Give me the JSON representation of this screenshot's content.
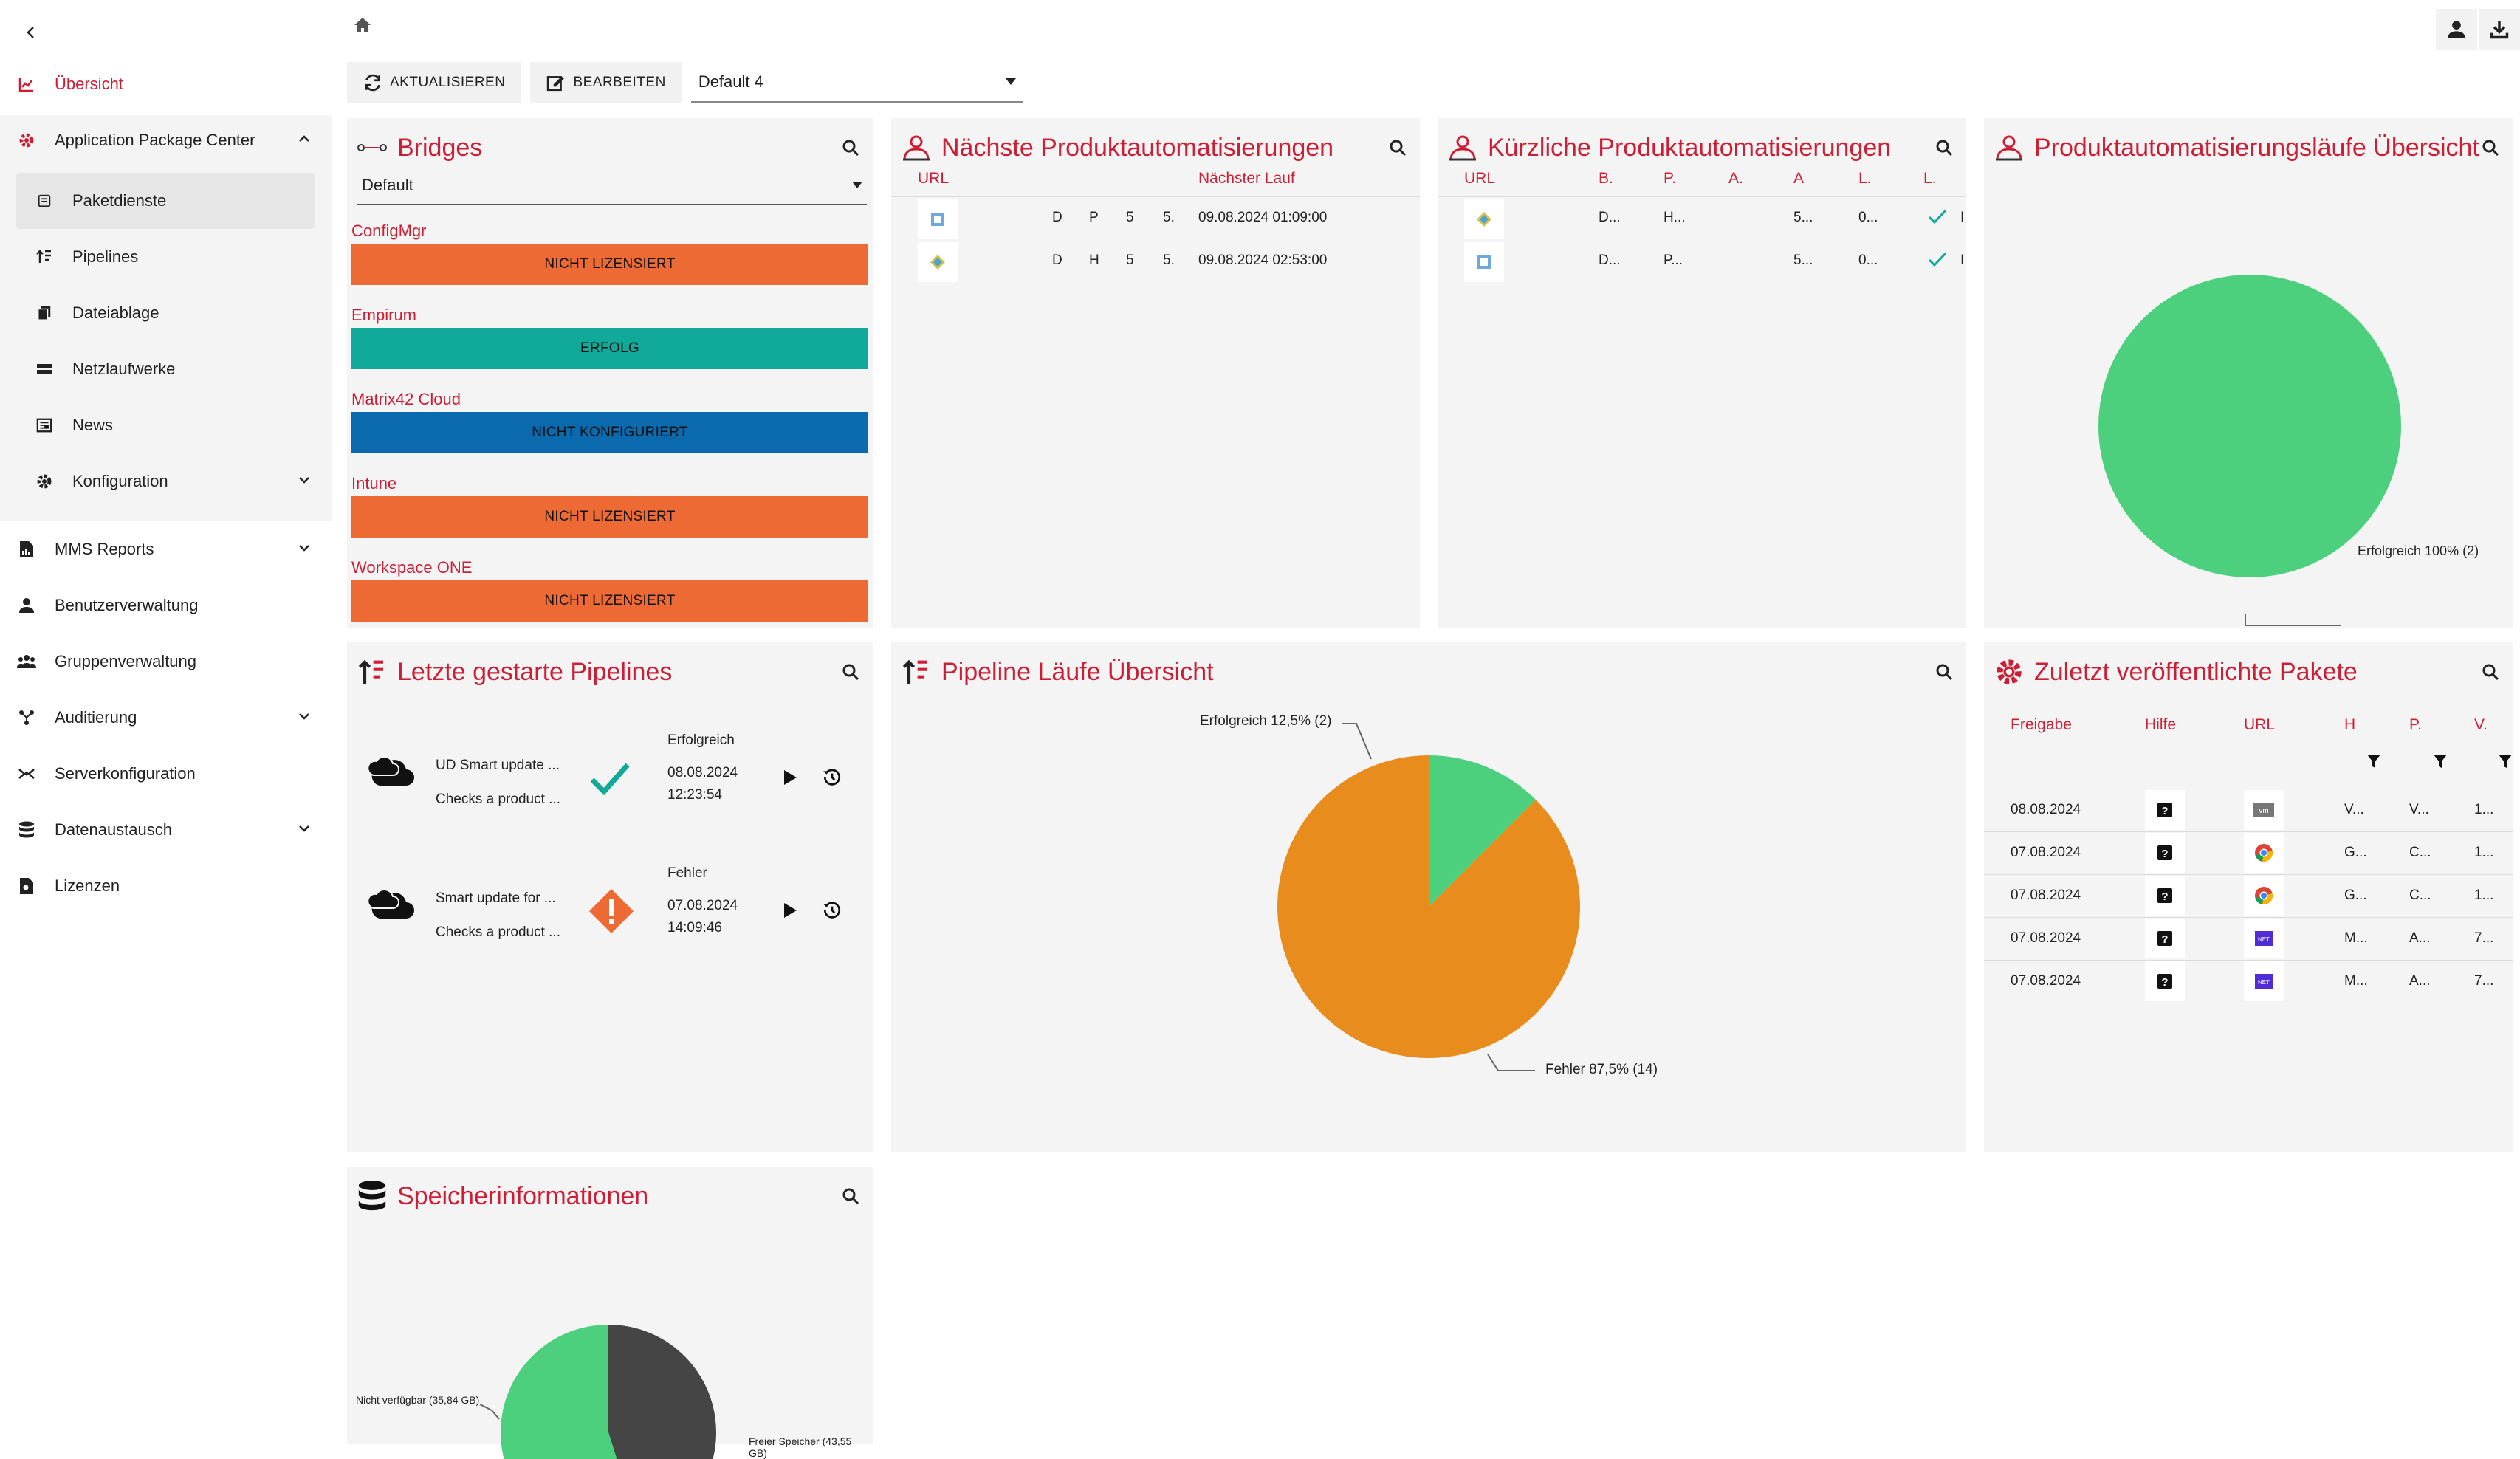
{
  "nav": {
    "items": [
      {
        "label": "Übersicht",
        "icon": "chart-icon",
        "active": true
      },
      {
        "label": "Application Package Center",
        "icon": "gear-icon",
        "expanded": true
      },
      {
        "label": "Paketdienste",
        "icon": "package-icon",
        "selected": true
      },
      {
        "label": "Pipelines",
        "icon": "pipeline-icon"
      },
      {
        "label": "Dateiablage",
        "icon": "files-icon"
      },
      {
        "label": "Netzlaufwerke",
        "icon": "drive-icon"
      },
      {
        "label": "News",
        "icon": "news-icon"
      },
      {
        "label": "Konfiguration",
        "icon": "gear-icon",
        "expandable": true
      },
      {
        "label": "MMS Reports",
        "icon": "report-icon",
        "expandable": true
      },
      {
        "label": "Benutzerverwaltung",
        "icon": "user-icon"
      },
      {
        "label": "Gruppenverwaltung",
        "icon": "group-icon"
      },
      {
        "label": "Auditierung",
        "icon": "audit-icon",
        "expandable": true
      },
      {
        "label": "Serverkonfiguration",
        "icon": "server-icon"
      },
      {
        "label": "Datenaustausch",
        "icon": "database-icon",
        "expandable": true
      },
      {
        "label": "Lizenzen",
        "icon": "license-icon"
      }
    ]
  },
  "toolbar": {
    "refresh_label": "AKTUALISIEREN",
    "edit_label": "BEARBEITEN",
    "dashboard_select": "Default 4"
  },
  "bridges": {
    "title": "Bridges",
    "select": "Default",
    "items": [
      {
        "name": "ConfigMgr",
        "status": "NICHT LIZENSIERT",
        "color": "#ee6a35"
      },
      {
        "name": "Empirum",
        "status": "ERFOLG",
        "color": "#10a99a"
      },
      {
        "name": "Matrix42 Cloud",
        "status": "NICHT KONFIGURIERT",
        "color": "#0a6aad"
      },
      {
        "name": "Intune",
        "status": "NICHT LIZENSIERT",
        "color": "#ee6a35"
      },
      {
        "name": "Workspace ONE",
        "status": "NICHT LIZENSIERT",
        "color": "#ee6a35"
      }
    ]
  },
  "next_automations": {
    "title": "Nächste Produktautomatisierungen",
    "headers": {
      "url": "URL",
      "next_run": "Nächster Lauf"
    },
    "rows": [
      {
        "c1": "D",
        "c2": "P",
        "c3": "5",
        "c4": "5.",
        "next": "09.08.2024 01:09:00"
      },
      {
        "c1": "D",
        "c2": "H",
        "c3": "5",
        "c4": "5.",
        "next": "09.08.2024 02:53:00"
      }
    ]
  },
  "recent_automations": {
    "title": "Kürzliche Produktautomatisierungen",
    "headers": {
      "url": "URL",
      "b": "B.",
      "p": "P.",
      "a1": "A.",
      "a2": "A",
      "l1": "L.",
      "l2": "L."
    },
    "rows": [
      {
        "b": "D...",
        "p": "H...",
        "a2": "5...",
        "l1": "0...",
        "more": "I"
      },
      {
        "b": "D...",
        "p": "P...",
        "a2": "5...",
        "l1": "0...",
        "more": "I"
      }
    ]
  },
  "runs_overview": {
    "title": "Produktautomatisierungsläufe Übersicht",
    "label": "Erfolgreich 100% (2)"
  },
  "last_pipelines": {
    "title": "Letzte gestarte Pipelines",
    "items": [
      {
        "name": "UD Smart update ...",
        "desc": "Checks a product ...",
        "status": "Erfolgreich",
        "date": "08.08.2024",
        "time": "12:23:54",
        "result": "success"
      },
      {
        "name": "Smart update for ...",
        "desc": "Checks a product ...",
        "status": "Fehler",
        "date": "07.08.2024",
        "time": "14:09:46",
        "result": "error"
      }
    ]
  },
  "pipeline_runs": {
    "title": "Pipeline Läufe Übersicht",
    "success_label": "Erfolgreich 12,5% (2)",
    "error_label": "Fehler 87,5% (14)"
  },
  "recent_packages": {
    "title": "Zuletzt veröffentlichte Pakete",
    "headers": {
      "release": "Freigabe",
      "help": "Hilfe",
      "url": "URL",
      "h": "H",
      "p": "P.",
      "v": "V."
    },
    "rows": [
      {
        "date": "08.08.2024",
        "h": "V...",
        "p": "V...",
        "v": "1...",
        "icon": "vm"
      },
      {
        "date": "07.08.2024",
        "h": "G...",
        "p": "C...",
        "v": "1...",
        "icon": "chrome"
      },
      {
        "date": "07.08.2024",
        "h": "G...",
        "p": "C...",
        "v": "1...",
        "icon": "chrome"
      },
      {
        "date": "07.08.2024",
        "h": "M...",
        "p": "A...",
        "v": "7...",
        "icon": "net"
      },
      {
        "date": "07.08.2024",
        "h": "M...",
        "p": "A...",
        "v": "7...",
        "icon": "net"
      }
    ],
    "net_text": "NET",
    "vm_text": "vm"
  },
  "storage": {
    "title": "Speicherinformationen",
    "unavailable_label": "Nicht verfügbar (35,84 GB)",
    "free_label": "Freier Speicher (43,55 GB)"
  },
  "chart_data": [
    {
      "type": "pie",
      "categories": [
        "Erfolgreich"
      ],
      "values": [
        2
      ],
      "percent": [
        100
      ],
      "colors": [
        "#4cd07d"
      ]
    },
    {
      "type": "pie",
      "categories": [
        "Erfolgreich",
        "Fehler"
      ],
      "values": [
        2,
        14
      ],
      "percent": [
        12.5,
        87.5
      ],
      "colors": [
        "#4cd07d",
        "#e88c1e"
      ]
    },
    {
      "type": "pie",
      "categories": [
        "Nicht verfügbar",
        "Freier Speicher"
      ],
      "values": [
        35.84,
        43.55
      ],
      "unit": "GB",
      "colors": [
        "#454545",
        "#4cd07d"
      ]
    }
  ]
}
